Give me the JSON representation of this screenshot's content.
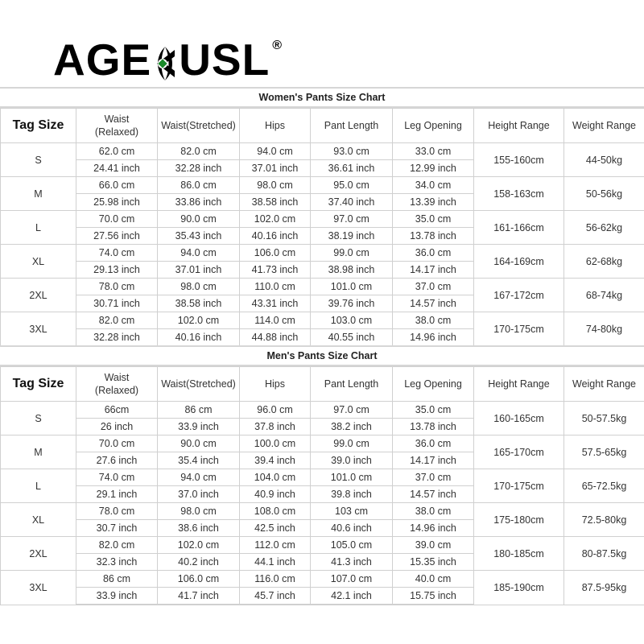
{
  "logo": {
    "text_left": "AGE",
    "text_right": "USL",
    "registered": "®",
    "accent": "#1a8a2a"
  },
  "columns": [
    "Tag Size",
    "Waist\n(Relaxed)",
    "Waist(Stretched)",
    "Hips",
    "Pant Length",
    "Leg Opening",
    "Height Range",
    "Weight Range"
  ],
  "charts": [
    {
      "title": "Women's Pants Size Chart",
      "rows": [
        {
          "size": "S",
          "cm": [
            "62.0 cm",
            "82.0 cm",
            "94.0 cm",
            "93.0 cm",
            "33.0 cm"
          ],
          "inch": [
            "24.41 inch",
            "32.28 inch",
            "37.01 inch",
            "36.61 inch",
            "12.99 inch"
          ],
          "height": "155-160cm",
          "weight": "44-50kg"
        },
        {
          "size": "M",
          "cm": [
            "66.0 cm",
            "86.0 cm",
            "98.0 cm",
            "95.0 cm",
            "34.0 cm"
          ],
          "inch": [
            "25.98 inch",
            "33.86 inch",
            "38.58 inch",
            "37.40 inch",
            "13.39 inch"
          ],
          "height": "158-163cm",
          "weight": "50-56kg"
        },
        {
          "size": "L",
          "cm": [
            "70.0 cm",
            "90.0 cm",
            "102.0 cm",
            "97.0 cm",
            "35.0 cm"
          ],
          "inch": [
            "27.56 inch",
            "35.43 inch",
            "40.16 inch",
            "38.19 inch",
            "13.78 inch"
          ],
          "height": "161-166cm",
          "weight": "56-62kg"
        },
        {
          "size": "XL",
          "cm": [
            "74.0 cm",
            "94.0 cm",
            "106.0 cm",
            "99.0 cm",
            "36.0 cm"
          ],
          "inch": [
            "29.13 inch",
            "37.01 inch",
            "41.73 inch",
            "38.98 inch",
            "14.17 inch"
          ],
          "height": "164-169cm",
          "weight": "62-68kg"
        },
        {
          "size": "2XL",
          "cm": [
            "78.0 cm",
            "98.0 cm",
            "110.0 cm",
            "101.0 cm",
            "37.0 cm"
          ],
          "inch": [
            "30.71 inch",
            "38.58 inch",
            "43.31 inch",
            "39.76 inch",
            "14.57 inch"
          ],
          "height": "167-172cm",
          "weight": "68-74kg"
        },
        {
          "size": "3XL",
          "cm": [
            "82.0 cm",
            "102.0 cm",
            "114.0 cm",
            "103.0 cm",
            "38.0 cm"
          ],
          "inch": [
            "32.28 inch",
            "40.16 inch",
            "44.88 inch",
            "40.55 inch",
            "14.96 inch"
          ],
          "height": "170-175cm",
          "weight": "74-80kg"
        }
      ]
    },
    {
      "title": "Men's Pants Size Chart",
      "rows": [
        {
          "size": "S",
          "cm": [
            "66cm",
            "86 cm",
            "96.0 cm",
            "97.0 cm",
            "35.0 cm"
          ],
          "inch": [
            "26 inch",
            "33.9 inch",
            "37.8 inch",
            "38.2 inch",
            "13.78 inch"
          ],
          "height": "160-165cm",
          "weight": "50-57.5kg"
        },
        {
          "size": "M",
          "cm": [
            "70.0 cm",
            "90.0 cm",
            "100.0 cm",
            "99.0 cm",
            "36.0 cm"
          ],
          "inch": [
            "27.6 inch",
            "35.4 inch",
            "39.4 inch",
            "39.0 inch",
            "14.17 inch"
          ],
          "height": "165-170cm",
          "weight": "57.5-65kg"
        },
        {
          "size": "L",
          "cm": [
            "74.0 cm",
            "94.0 cm",
            "104.0 cm",
            "101.0 cm",
            "37.0 cm"
          ],
          "inch": [
            "29.1 inch",
            "37.0 inch",
            "40.9 inch",
            "39.8 inch",
            "14.57 inch"
          ],
          "height": "170-175cm",
          "weight": "65-72.5kg"
        },
        {
          "size": "XL",
          "cm": [
            "78.0 cm",
            "98.0 cm",
            "108.0 cm",
            "103 cm",
            "38.0 cm"
          ],
          "inch": [
            "30.7 inch",
            "38.6 inch",
            "42.5 inch",
            "40.6 inch",
            "14.96 inch"
          ],
          "height": "175-180cm",
          "weight": "72.5-80kg"
        },
        {
          "size": "2XL",
          "cm": [
            "82.0 cm",
            "102.0 cm",
            "112.0 cm",
            "105.0 cm",
            "39.0 cm"
          ],
          "inch": [
            "32.3 inch",
            "40.2 inch",
            "44.1 inch",
            "41.3 inch",
            "15.35 inch"
          ],
          "height": "180-185cm",
          "weight": "80-87.5kg"
        },
        {
          "size": "3XL",
          "cm": [
            "86 cm",
            "106.0 cm",
            "116.0 cm",
            "107.0 cm",
            "40.0 cm"
          ],
          "inch": [
            "33.9 inch",
            "41.7 inch",
            "45.7 inch",
            "42.1 inch",
            "15.75 inch"
          ],
          "height": "185-190cm",
          "weight": "87.5-95kg"
        }
      ]
    }
  ]
}
